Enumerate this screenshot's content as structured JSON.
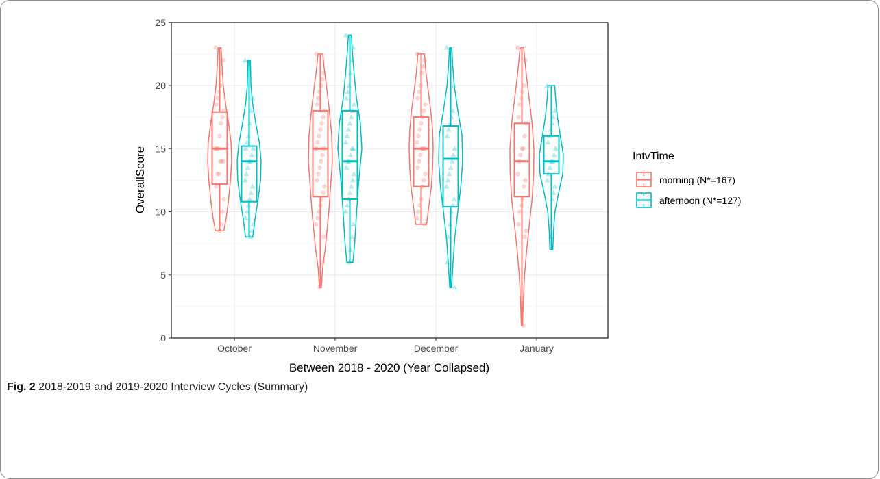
{
  "caption": {
    "label": "Fig. 2",
    "text": "2018-2019 and 2019-2020 Interview Cycles (Summary)"
  },
  "chart_data": {
    "type": "violin-box",
    "xlabel": "Between 2018 - 2020 (Year Collapsed)",
    "ylabel": "OverallScore",
    "ylim": [
      0,
      25
    ],
    "yticks": [
      0,
      5,
      10,
      15,
      20,
      25
    ],
    "grid": true,
    "categories": [
      "October",
      "November",
      "December",
      "January"
    ],
    "legend": {
      "title": "IntvTime",
      "placement": "right",
      "entries": [
        {
          "label": "morning (N*=167)",
          "color": "#F8766D"
        },
        {
          "label": "afternoon (N*=127)",
          "color": "#00BFC4"
        }
      ]
    },
    "series": [
      {
        "key": "morning",
        "color": "#F8766D",
        "marker": "circle",
        "groups": [
          {
            "category": "October",
            "min": 8.5,
            "q1": 12.2,
            "median": 15,
            "q3": 17.9,
            "max": 23,
            "points": [
              23,
              22,
              21,
              20,
              19.5,
              19,
              18.5,
              18,
              17.5,
              17,
              16,
              15,
              15,
              15,
              14,
              14,
              14,
              13,
              13,
              12,
              11,
              10,
              9,
              8.5
            ],
            "density": [
              [
                8.5,
                0.35
              ],
              [
                9.5,
                0.55
              ],
              [
                11,
                0.75
              ],
              [
                12.5,
                0.9
              ],
              [
                14,
                1.0
              ],
              [
                15.5,
                0.95
              ],
              [
                17,
                0.75
              ],
              [
                18.5,
                0.5
              ],
              [
                20,
                0.3
              ],
              [
                21.5,
                0.2
              ],
              [
                23,
                0.12
              ]
            ]
          },
          {
            "category": "November",
            "min": 4,
            "q1": 11.2,
            "median": 15,
            "q3": 18,
            "max": 22.5,
            "points": [
              22.5,
              21,
              20.5,
              20,
              19.5,
              19,
              18.5,
              18,
              17.5,
              17,
              16.5,
              16,
              15.5,
              15,
              15,
              14.5,
              14,
              13.5,
              13,
              12.5,
              12,
              11.5,
              11,
              10.5,
              10,
              9.5,
              9,
              8,
              6,
              4.5,
              4
            ],
            "density": [
              [
                4,
                0.08
              ],
              [
                5.5,
                0.18
              ],
              [
                7,
                0.4
              ],
              [
                8.5,
                0.55
              ],
              [
                10,
                0.7
              ],
              [
                12,
                0.85
              ],
              [
                14,
                1.0
              ],
              [
                16,
                0.95
              ],
              [
                18,
                0.75
              ],
              [
                20,
                0.5
              ],
              [
                21.5,
                0.3
              ],
              [
                22.5,
                0.2
              ]
            ]
          },
          {
            "category": "December",
            "min": 9,
            "q1": 12,
            "median": 15,
            "q3": 17.5,
            "max": 22.5,
            "points": [
              22.5,
              22,
              21.5,
              21,
              20,
              19.5,
              19,
              18.5,
              18,
              17.5,
              17,
              16.5,
              16,
              15.5,
              15,
              15,
              15,
              14.5,
              14,
              13.5,
              13,
              12.5,
              12,
              11,
              10.5,
              10,
              9.5,
              9
            ],
            "density": [
              [
                9,
                0.45
              ],
              [
                10.5,
                0.65
              ],
              [
                12,
                0.85
              ],
              [
                13.5,
                0.95
              ],
              [
                15,
                1.0
              ],
              [
                16.5,
                0.95
              ],
              [
                18,
                0.8
              ],
              [
                19.5,
                0.6
              ],
              [
                21,
                0.4
              ],
              [
                22.5,
                0.28
              ]
            ]
          },
          {
            "category": "January",
            "min": 1,
            "q1": 11.2,
            "median": 14,
            "q3": 17,
            "max": 23,
            "points": [
              23,
              22,
              20,
              19.5,
              19,
              18.5,
              17.5,
              17,
              16,
              15,
              15,
              14.5,
              14,
              13,
              12.5,
              12,
              11,
              10.5,
              10,
              9,
              8.5,
              8,
              1
            ],
            "density": [
              [
                1,
                0.05
              ],
              [
                3,
                0.12
              ],
              [
                5,
                0.22
              ],
              [
                7,
                0.4
              ],
              [
                9,
                0.62
              ],
              [
                11,
                0.85
              ],
              [
                13,
                0.98
              ],
              [
                15,
                1.0
              ],
              [
                17,
                0.85
              ],
              [
                19,
                0.6
              ],
              [
                21,
                0.35
              ],
              [
                23,
                0.15
              ]
            ]
          }
        ]
      },
      {
        "key": "afternoon",
        "color": "#00BFC4",
        "marker": "triangle",
        "groups": [
          {
            "category": "October",
            "min": 8,
            "q1": 10.8,
            "median": 14,
            "q3": 15.2,
            "max": 22,
            "points": [
              22,
              19,
              18,
              17,
              16,
              15.5,
              15,
              15,
              14.5,
              14,
              14,
              13.5,
              13,
              12.5,
              12,
              11.5,
              11,
              10.5,
              10,
              9.5,
              9,
              8.5,
              8
            ],
            "density": [
              [
                8,
                0.3
              ],
              [
                9.5,
                0.5
              ],
              [
                11,
                0.75
              ],
              [
                12.5,
                0.95
              ],
              [
                14,
                1.0
              ],
              [
                15.5,
                0.85
              ],
              [
                17,
                0.55
              ],
              [
                18.5,
                0.3
              ],
              [
                20,
                0.15
              ],
              [
                22,
                0.1
              ]
            ]
          },
          {
            "category": "November",
            "min": 6,
            "q1": 11,
            "median": 14,
            "q3": 18,
            "max": 24,
            "points": [
              24,
              23,
              22,
              21,
              20,
              19.5,
              19,
              18.5,
              18,
              17.5,
              17,
              16.5,
              16,
              15.5,
              15,
              15,
              14.5,
              14,
              14,
              13.5,
              13,
              12.5,
              12,
              11.5,
              11,
              10.5,
              10,
              9,
              8,
              7,
              6
            ],
            "density": [
              [
                6,
                0.25
              ],
              [
                7.5,
                0.4
              ],
              [
                9,
                0.5
              ],
              [
                10.5,
                0.6
              ],
              [
                12,
                0.7
              ],
              [
                13.5,
                0.85
              ],
              [
                15,
                1.0
              ],
              [
                17,
                0.88
              ],
              [
                19,
                0.55
              ],
              [
                21,
                0.35
              ],
              [
                22.5,
                0.22
              ],
              [
                24,
                0.12
              ]
            ]
          },
          {
            "category": "December",
            "min": 4,
            "q1": 10.4,
            "median": 14.2,
            "q3": 16.8,
            "max": 23,
            "points": [
              23,
              20,
              18,
              17.5,
              17,
              16.5,
              16,
              15,
              14.5,
              14,
              13.5,
              13,
              12.5,
              12,
              11,
              10.5,
              10,
              9,
              8,
              6,
              4
            ],
            "density": [
              [
                4,
                0.08
              ],
              [
                6,
                0.2
              ],
              [
                8,
                0.35
              ],
              [
                10,
                0.6
              ],
              [
                12,
                0.85
              ],
              [
                14,
                1.0
              ],
              [
                16,
                0.95
              ],
              [
                18,
                0.6
              ],
              [
                20,
                0.3
              ],
              [
                21.5,
                0.18
              ],
              [
                23,
                0.1
              ]
            ]
          },
          {
            "category": "January",
            "min": 7,
            "q1": 13,
            "median": 14,
            "q3": 16,
            "max": 20,
            "points": [
              20,
              18,
              17.5,
              17,
              16.5,
              16,
              15.5,
              15,
              14.5,
              14,
              14,
              13.5,
              13,
              12.5,
              12,
              11.5,
              11,
              8
            ],
            "density": [
              [
                7,
                0.12
              ],
              [
                8.5,
                0.18
              ],
              [
                10,
                0.3
              ],
              [
                11.5,
                0.6
              ],
              [
                13,
                0.95
              ],
              [
                14.5,
                1.0
              ],
              [
                16,
                0.75
              ],
              [
                17.5,
                0.5
              ],
              [
                19,
                0.35
              ],
              [
                20,
                0.28
              ]
            ]
          }
        ]
      }
    ]
  }
}
